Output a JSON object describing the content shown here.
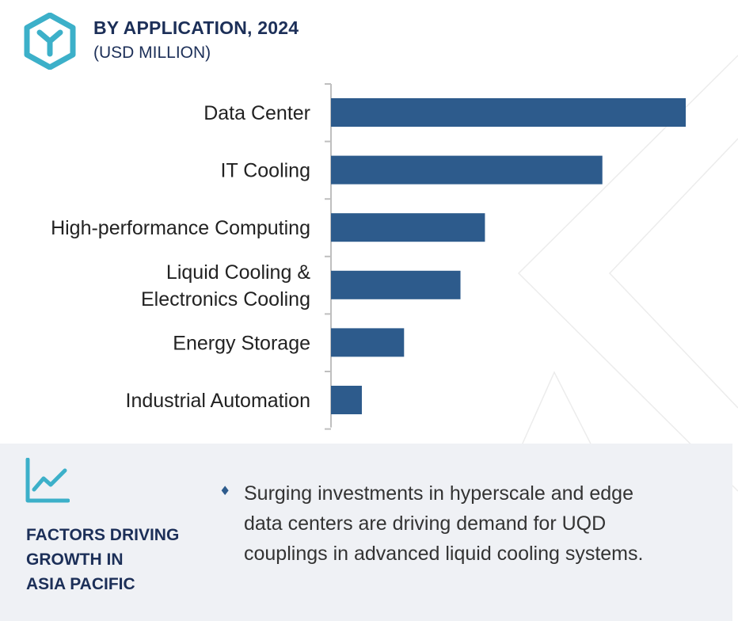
{
  "header": {
    "title": "BY APPLICATION, 2024",
    "subtitle": "(USD MILLION)",
    "logo_icon": "hexagon-y-logo-icon"
  },
  "colors": {
    "bar": "#2d5b8c",
    "title": "#1c2f58",
    "logo": "#3cb0c9",
    "panel_bg": "#eff1f5"
  },
  "chart_data": {
    "type": "bar",
    "orientation": "horizontal",
    "title": "BY APPLICATION, 2024",
    "subtitle": "(USD MILLION)",
    "categories": [
      [
        "Data Center"
      ],
      [
        "IT Cooling"
      ],
      [
        "High-performance Computing"
      ],
      [
        "Liquid Cooling &",
        "Electronics Cooling"
      ],
      [
        "Energy Storage"
      ],
      [
        "Industrial Automation"
      ]
    ],
    "values": [
      100,
      76.5,
      43.4,
      36.5,
      20.6,
      8.7
    ],
    "value_scale": "relative (no axis values shown)",
    "xlim": [
      0,
      100
    ],
    "grid": false,
    "legend": "none"
  },
  "footer": {
    "trend_icon": "trend-chart-icon",
    "factors_title": "FACTORS DRIVING\nGROWTH IN\nASIA PACIFIC",
    "bullet_icon": "diamond-bullet-icon",
    "bullet_glyph": "♦",
    "bullet_text": "Surging investments in hyperscale and edge\ndata centers are driving demand for UQD\ncouplings in advanced liquid cooling systems."
  }
}
